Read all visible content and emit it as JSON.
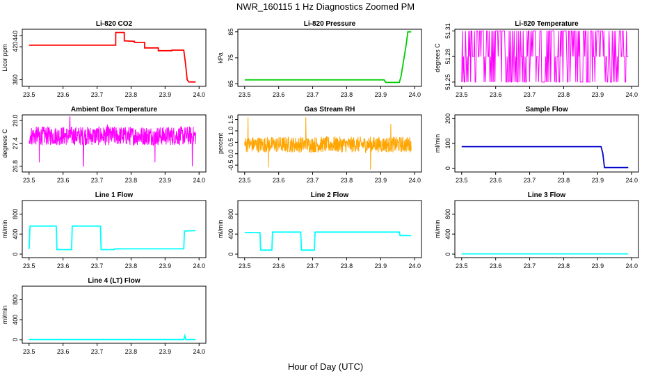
{
  "title": "NWR_160115  1 Hz Diagnostics Zoomed PM",
  "xlabel": "Hour of Day (UTC)",
  "chart_data": [
    {
      "type": "line",
      "title": "Li-820 CO2",
      "ylabel": "Licor ppm",
      "xlim": [
        23.48,
        24.02
      ],
      "ylim": [
        348,
        452
      ],
      "yticks": [
        "360",
        "420",
        "440"
      ],
      "ytick_values": [
        360,
        420,
        440
      ],
      "xticks": [
        "23.5",
        "23.6",
        "23.7",
        "23.8",
        "23.9",
        "24.0"
      ],
      "xtick_values": [
        23.5,
        23.6,
        23.7,
        23.8,
        23.9,
        24.0
      ],
      "color": "#ff0000",
      "series": [
        {
          "name": "CO2",
          "x": [
            23.5,
            23.755,
            23.755,
            23.78,
            23.78,
            23.81,
            23.81,
            23.84,
            23.84,
            23.88,
            23.88,
            23.92,
            23.92,
            23.955,
            23.96,
            23.965,
            23.97,
            23.99
          ],
          "values": [
            423,
            423,
            446,
            446,
            431,
            430,
            428,
            428,
            418,
            418,
            413,
            413,
            414,
            414,
            390,
            360,
            356,
            356
          ]
        }
      ]
    },
    {
      "type": "line",
      "title": "Li-820 Pressure",
      "ylabel": "kPa",
      "xlim": [
        23.48,
        24.02
      ],
      "ylim": [
        64,
        86
      ],
      "yticks": [
        "65",
        "75",
        "85"
      ],
      "ytick_values": [
        65,
        75,
        85
      ],
      "xticks": [
        "23.5",
        "23.6",
        "23.7",
        "23.8",
        "23.9",
        "24.0"
      ],
      "xtick_values": [
        23.5,
        23.6,
        23.7,
        23.8,
        23.9,
        24.0
      ],
      "color": "#00cc00",
      "series": [
        {
          "name": "Pressure",
          "x": [
            23.5,
            23.91,
            23.915,
            23.955,
            23.96,
            23.975,
            23.98,
            23.99
          ],
          "values": [
            66.5,
            66.5,
            65.5,
            65.5,
            68,
            80,
            85,
            85
          ]
        }
      ]
    },
    {
      "type": "line",
      "title": "Li-820 Temperature",
      "ylabel": "degrees C",
      "xlim": [
        23.48,
        24.02
      ],
      "ylim": [
        51.245,
        51.312
      ],
      "yticks": [
        "51.25",
        "51.28",
        "51.31"
      ],
      "ytick_values": [
        51.25,
        51.28,
        51.31
      ],
      "xticks": [
        "23.5",
        "23.6",
        "23.7",
        "23.8",
        "23.9",
        "24.0"
      ],
      "xtick_values": [
        23.5,
        23.6,
        23.7,
        23.8,
        23.9,
        24.0
      ],
      "color": "#ff00ff",
      "series": [
        {
          "name": "Temperature",
          "x": [
            23.5,
            23.99
          ],
          "levels": [
            51.25,
            51.28,
            51.31
          ],
          "pattern": "switching between 51.25, 51.28 and 51.31"
        }
      ]
    },
    {
      "type": "line",
      "title": "Ambient Box Temperature",
      "ylabel": "degrees C",
      "xlim": [
        23.48,
        24.02
      ],
      "ylim": [
        26.65,
        28.15
      ],
      "yticks": [
        "26.8",
        "27.4",
        "28.0"
      ],
      "ytick_values": [
        26.8,
        27.4,
        28.0
      ],
      "xticks": [
        "23.5",
        "23.6",
        "23.7",
        "23.8",
        "23.9",
        "24.0"
      ],
      "xtick_values": [
        23.5,
        23.6,
        23.7,
        23.8,
        23.9,
        24.0
      ],
      "color": "#ff00ff",
      "series": [
        {
          "name": "Ambient Box Temperature",
          "x": [
            23.5,
            23.99
          ],
          "mean": 27.6,
          "spread": 0.25,
          "spikes": [
            [
              23.53,
              26.9
            ],
            [
              23.62,
              28.1
            ],
            [
              23.66,
              26.8
            ],
            [
              23.73,
              27.9
            ],
            [
              23.87,
              26.9
            ],
            [
              23.98,
              26.8
            ]
          ]
        }
      ]
    },
    {
      "type": "line",
      "title": "Gas Stream RH",
      "ylabel": "percent",
      "xlim": [
        23.48,
        24.02
      ],
      "ylim": [
        -0.8,
        1.7
      ],
      "yticks": [
        "-0.5",
        "0.0",
        "0.5",
        "1.0",
        "1.5"
      ],
      "ytick_values": [
        -0.5,
        0.0,
        0.5,
        1.0,
        1.5
      ],
      "xticks": [
        "23.5",
        "23.6",
        "23.7",
        "23.8",
        "23.9",
        "24.0"
      ],
      "xtick_values": [
        23.5,
        23.6,
        23.7,
        23.8,
        23.9,
        24.0
      ],
      "color": "#ffa500",
      "series": [
        {
          "name": "RH",
          "x": [
            23.5,
            23.99
          ],
          "mean": 0.4,
          "spread": 0.35,
          "spikes": [
            [
              23.51,
              1.6
            ],
            [
              23.57,
              -0.6
            ],
            [
              23.68,
              1.6
            ],
            [
              23.87,
              -0.7
            ],
            [
              23.93,
              1.3
            ]
          ]
        }
      ]
    },
    {
      "type": "line",
      "title": "Sample Flow",
      "ylabel": "ml/min",
      "xlim": [
        23.48,
        24.02
      ],
      "ylim": [
        -15,
        215
      ],
      "yticks": [
        "0",
        "100",
        "200"
      ],
      "ytick_values": [
        0,
        100,
        200
      ],
      "xticks": [
        "23.5",
        "23.6",
        "23.7",
        "23.8",
        "23.9",
        "24.0"
      ],
      "xtick_values": [
        23.5,
        23.6,
        23.7,
        23.8,
        23.9,
        24.0
      ],
      "color": "#0000cc",
      "series": [
        {
          "name": "Sample Flow",
          "x": [
            23.5,
            23.91,
            23.915,
            23.92,
            23.99
          ],
          "values": [
            87,
            87,
            60,
            3,
            3
          ]
        }
      ]
    },
    {
      "type": "line",
      "title": "Line 1 Flow",
      "ylabel": "ml/min",
      "xlim": [
        23.48,
        24.02
      ],
      "ylim": [
        -70,
        1070
      ],
      "yticks": [
        "0",
        "400",
        "800"
      ],
      "ytick_values": [
        0,
        400,
        800
      ],
      "xticks": [
        "23.5",
        "23.6",
        "23.7",
        "23.8",
        "23.9",
        "24.0"
      ],
      "xtick_values": [
        23.5,
        23.6,
        23.7,
        23.8,
        23.9,
        24.0
      ],
      "color": "#00ffff",
      "series": [
        {
          "name": "Line 1 Flow",
          "x": [
            23.5,
            23.503,
            23.58,
            23.582,
            23.625,
            23.627,
            23.71,
            23.712,
            23.75,
            23.752,
            23.955,
            23.957,
            23.99
          ],
          "values": [
            100,
            560,
            560,
            90,
            90,
            560,
            560,
            90,
            90,
            105,
            105,
            460,
            470
          ]
        }
      ]
    },
    {
      "type": "line",
      "title": "Line 2 Flow",
      "ylabel": "ml/min",
      "xlim": [
        23.48,
        24.02
      ],
      "ylim": [
        -70,
        1070
      ],
      "yticks": [
        "0",
        "400",
        "800"
      ],
      "ytick_values": [
        0,
        400,
        800
      ],
      "xticks": [
        "23.5",
        "23.6",
        "23.7",
        "23.8",
        "23.9",
        "24.0"
      ],
      "xtick_values": [
        23.5,
        23.6,
        23.7,
        23.8,
        23.9,
        24.0
      ],
      "color": "#00ffff",
      "series": [
        {
          "name": "Line 2 Flow",
          "x": [
            23.5,
            23.545,
            23.547,
            23.58,
            23.582,
            23.665,
            23.667,
            23.705,
            23.707,
            23.955,
            23.957,
            23.99
          ],
          "values": [
            430,
            430,
            80,
            80,
            440,
            440,
            80,
            80,
            440,
            440,
            370,
            370
          ]
        }
      ]
    },
    {
      "type": "line",
      "title": "Line 3 Flow",
      "ylabel": "ml/min",
      "xlim": [
        23.48,
        24.02
      ],
      "ylim": [
        -70,
        1070
      ],
      "yticks": [
        "0",
        "400",
        "800"
      ],
      "ytick_values": [
        0,
        400,
        800
      ],
      "xticks": [
        "23.5",
        "23.6",
        "23.7",
        "23.8",
        "23.9",
        "24.0"
      ],
      "xtick_values": [
        23.5,
        23.6,
        23.7,
        23.8,
        23.9,
        24.0
      ],
      "color": "#00ffff",
      "series": [
        {
          "name": "Line 3 Flow",
          "x": [
            23.5,
            23.99
          ],
          "values": [
            5,
            5
          ]
        }
      ]
    },
    {
      "type": "line",
      "title": "Line 4 (LT) Flow",
      "ylabel": "ml/min",
      "xlim": [
        23.48,
        24.02
      ],
      "ylim": [
        -70,
        1070
      ],
      "yticks": [
        "0",
        "400",
        "800"
      ],
      "ytick_values": [
        0,
        400,
        800
      ],
      "xticks": [
        "23.5",
        "23.6",
        "23.7",
        "23.8",
        "23.9",
        "24.0"
      ],
      "xtick_values": [
        23.5,
        23.6,
        23.7,
        23.8,
        23.9,
        24.0
      ],
      "color": "#00ffff",
      "series": [
        {
          "name": "Line 4 (LT) Flow",
          "x": [
            23.5,
            23.955,
            23.958,
            23.961,
            23.99
          ],
          "values": [
            5,
            5,
            80,
            5,
            5
          ]
        }
      ]
    }
  ]
}
